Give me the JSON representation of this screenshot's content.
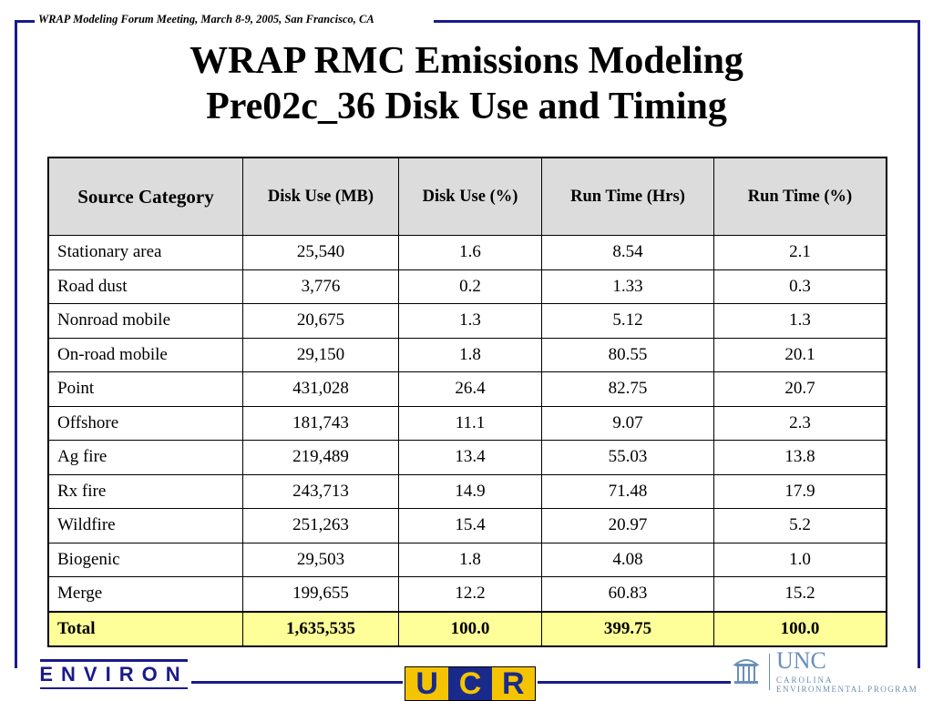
{
  "header_note": "WRAP Modeling Forum Meeting, March 8-9, 2005, San Francisco, CA",
  "title": {
    "line1": "WRAP RMC Emissions Modeling",
    "line2": "Pre02c_36 Disk Use and Timing"
  },
  "table": {
    "headers": [
      "Source Category",
      "Disk Use (MB)",
      "Disk Use (%)",
      "Run Time (Hrs)",
      "Run Time (%)"
    ],
    "rows": [
      [
        "Stationary area",
        "25,540",
        "1.6",
        "8.54",
        "2.1"
      ],
      [
        "Road dust",
        "3,776",
        "0.2",
        "1.33",
        "0.3"
      ],
      [
        "Nonroad mobile",
        "20,675",
        "1.3",
        "5.12",
        "1.3"
      ],
      [
        "On-road mobile",
        "29,150",
        "1.8",
        "80.55",
        "20.1"
      ],
      [
        "Point",
        "431,028",
        "26.4",
        "82.75",
        "20.7"
      ],
      [
        "Offshore",
        "181,743",
        "11.1",
        "9.07",
        "2.3"
      ],
      [
        "Ag fire",
        "219,489",
        "13.4",
        "55.03",
        "13.8"
      ],
      [
        "Rx fire",
        "243,713",
        "14.9",
        "71.48",
        "17.9"
      ],
      [
        "Wildfire",
        "251,263",
        "15.4",
        "20.97",
        "5.2"
      ],
      [
        "Biogenic",
        "29,503",
        "1.8",
        "4.08",
        "1.0"
      ],
      [
        "Merge",
        "199,655",
        "12.2",
        "60.83",
        "15.2"
      ]
    ],
    "total": [
      "Total",
      "1,635,535",
      "100.0",
      "399.75",
      "100.0"
    ]
  },
  "logos": {
    "environ": "ENVIRON",
    "ucr": [
      "U",
      "C",
      "R"
    ],
    "unc": {
      "name": "UNC",
      "line1": "CAROLINA",
      "line2": "ENVIRONMENTAL PROGRAM"
    }
  },
  "colors": {
    "frame": "#1a1a8c",
    "header_fill": "#dcdcdc",
    "total_fill": "#ffff99",
    "unc_blue": "#6a8fb5",
    "ucr_gold": "#f5c400",
    "ucr_blue": "#1a2a8c"
  }
}
